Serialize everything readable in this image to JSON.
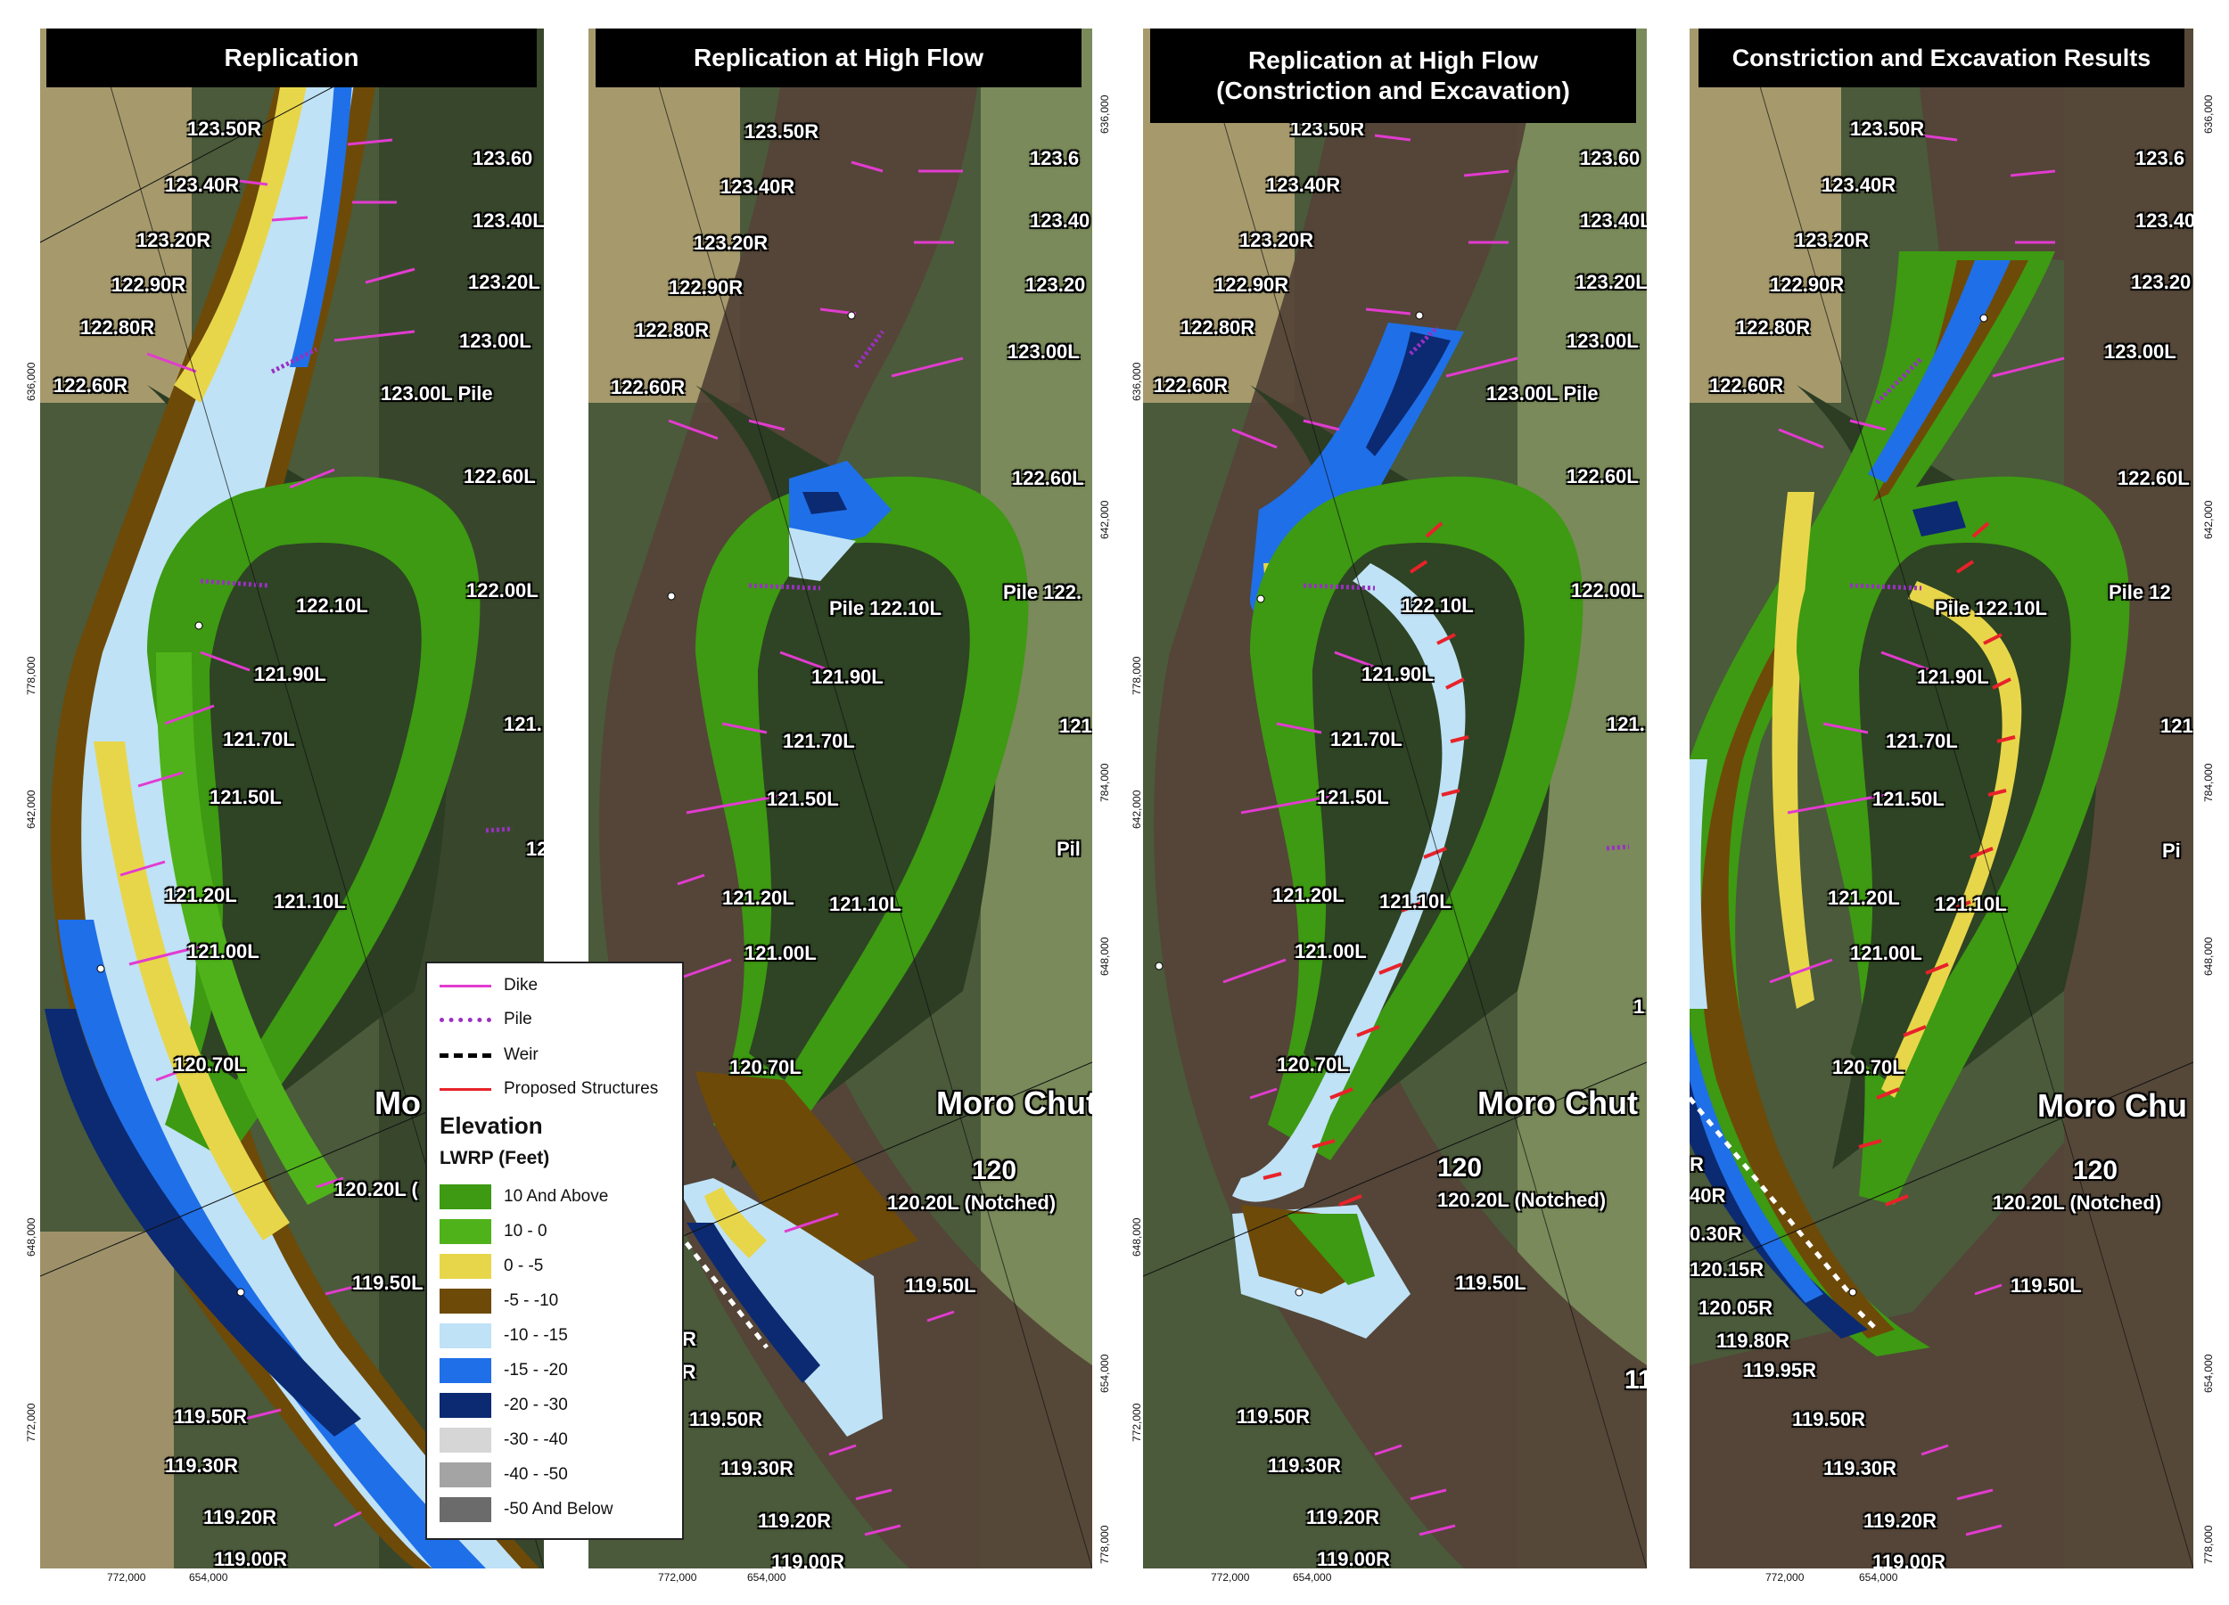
{
  "panels": [
    {
      "title": "Replication",
      "labels": [
        "123.50R",
        "123.40R",
        "123.20R",
        "122.90R",
        "122.80R",
        "122.60R",
        "123.60",
        "123.40L",
        "123.20L",
        "123.00L",
        "123.00L Pile",
        "122.60L",
        "122.10L",
        "122.00L",
        "121.90L",
        "121.70L",
        "121.50L",
        "121.20L",
        "121.10L",
        "121.00L",
        "120.70L",
        "120.20L (",
        "119.50L",
        "119.50R",
        "119.30R",
        "119.20R",
        "119.00R",
        "Mo",
        "121.",
        "12"
      ]
    },
    {
      "title": "Replication at High Flow",
      "labels": [
        "123.50R",
        "123.40R",
        "123.20R",
        "122.90R",
        "122.80R",
        "122.60R",
        "123.6",
        "123.40",
        "123.20",
        "123.00L",
        "122.60L",
        "Pile 122.10L",
        "Pile 122.",
        "121.90L",
        "121.70L",
        "121.50L",
        "121.20L",
        "121.10L",
        "121.00L",
        "120.70L",
        "120",
        "120.20L (Notched)",
        "119.50L",
        "119.50R",
        "119.30R",
        "119.20R",
        "119.00R",
        "R",
        "95R",
        "Moro Chut",
        "121",
        "Pil"
      ]
    },
    {
      "title": "Replication at High Flow\n(Constriction and Excavation)",
      "labels": [
        "123.50R",
        "123.40R",
        "123.20R",
        "122.90R",
        "122.80R",
        "122.60R",
        "123.60",
        "123.40L",
        "123.20L",
        "123.00L",
        "123.00L Pile",
        "122.60L",
        "122.10L",
        "122.00L",
        "121.90L",
        "121.70L",
        "121.50L",
        "121.20L",
        "121.10L",
        "121.00L",
        "120.70L",
        "120",
        "120.20L (Notched)",
        "119.50L",
        "119.50R",
        "119.30R",
        "119.20R",
        "119.00R",
        "Moro Chut",
        "121.",
        "1",
        "11"
      ]
    },
    {
      "title": "Constriction and Excavation Results",
      "labels": [
        "123.50R",
        "123.40R",
        "123.20R",
        "122.90R",
        "122.80R",
        "122.60R",
        "123.6",
        "123.40",
        "123.20",
        "123.00L",
        "122.60L",
        "Pile 122.10L",
        "Pile 12",
        "121.90L",
        "121.70L",
        "121.50L",
        "121.20L",
        "121.10L",
        "121.00L",
        "120.70L",
        "120",
        "120.20L (Notched)",
        "119.50L",
        "R",
        "40R",
        "0.30R",
        "120.15R",
        "120.05R",
        "119.80R",
        "119.95R",
        "119.50R",
        "119.30R",
        "119.20R",
        "119.00R",
        "Moro Chu",
        "121",
        "Pi"
      ]
    }
  ],
  "coords": {
    "bottom": [
      "772,000",
      "654,000"
    ],
    "left": [
      "636,000",
      "778,000",
      "642,000",
      "648,000",
      "772,000"
    ],
    "right": [
      "636,000",
      "642,000",
      "784,000",
      "648,000",
      "654,000",
      "778,000"
    ]
  },
  "legend": {
    "lines": [
      {
        "label": "Dike",
        "color": "#e23bd0",
        "style": "solid"
      },
      {
        "label": "Pile",
        "color": "#9b2fc4",
        "style": "dotted"
      },
      {
        "label": "Weir",
        "color": "#000000",
        "style": "dashed"
      },
      {
        "label": "Proposed Structures",
        "color": "#e8222a",
        "style": "solid"
      }
    ],
    "heading": "Elevation",
    "subheading": "LWRP (Feet)",
    "classes": [
      {
        "label": "10 And Above",
        "color": "#3d9a12"
      },
      {
        "label": "10 - 0",
        "color": "#4fb21a"
      },
      {
        "label": "0 - -5",
        "color": "#e8d64a"
      },
      {
        "label": "-5 - -10",
        "color": "#6e4a08"
      },
      {
        "label": "-10 - -15",
        "color": "#bfe2f6"
      },
      {
        "label": "-15 - -20",
        "color": "#1f6fe8"
      },
      {
        "label": "-20 - -30",
        "color": "#0b2a72"
      },
      {
        "label": "-30 - -40",
        "color": "#d6d6d6"
      },
      {
        "label": "-40 - -50",
        "color": "#a4a4a4"
      },
      {
        "label": "-50 And Below",
        "color": "#6b6b6b"
      }
    ]
  }
}
